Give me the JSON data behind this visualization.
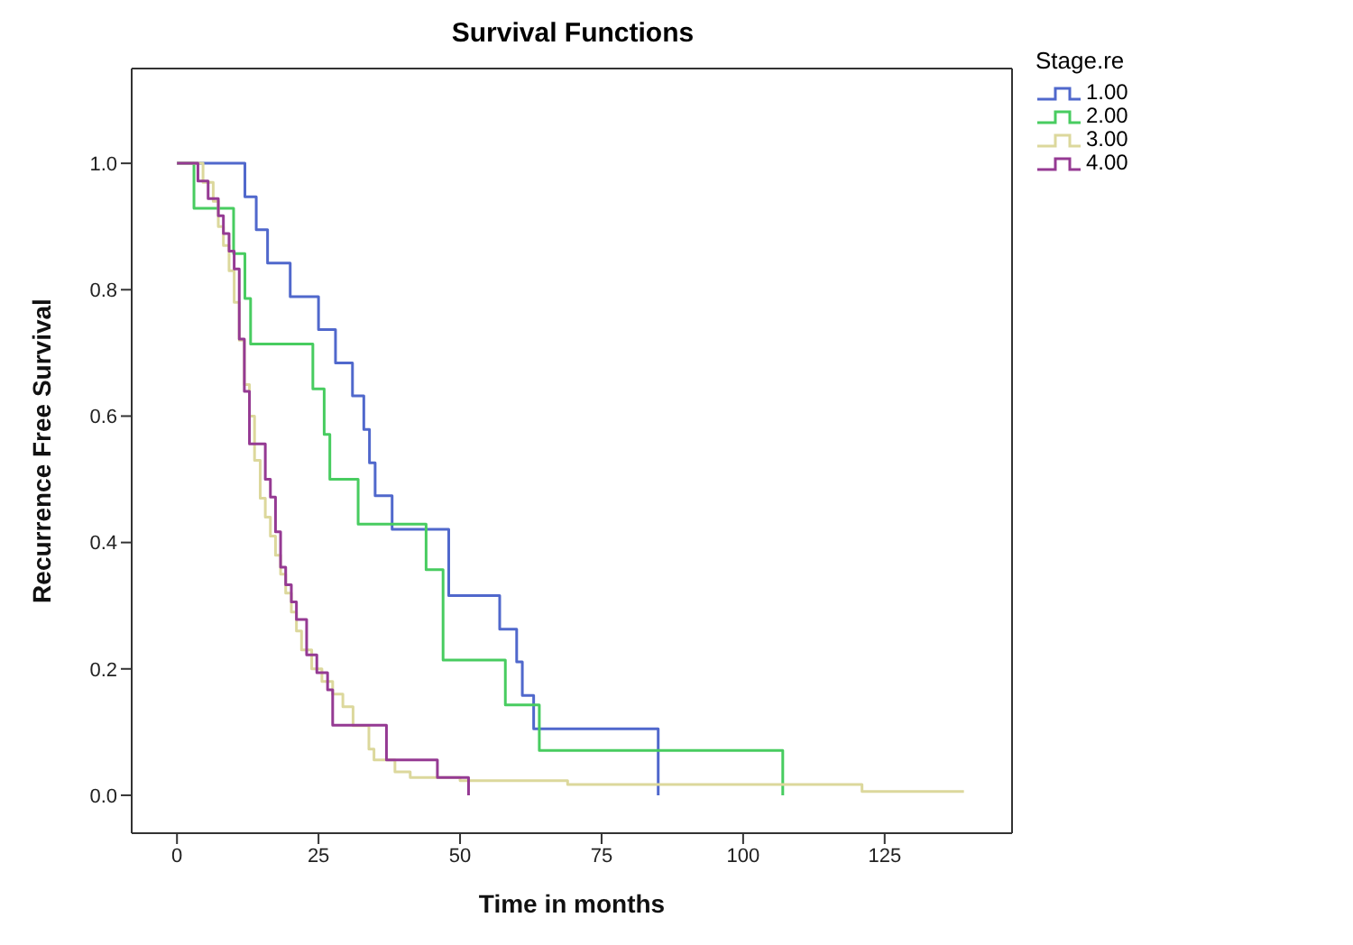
{
  "chart_data": {
    "type": "step",
    "title": "Survival Functions",
    "xlabel": "Time in months",
    "ylabel": "Recurrence Free Survival",
    "legend_title": "Stage.re",
    "legend": "top right",
    "marker": "none",
    "xlim": [
      -8,
      147.5
    ],
    "xticks": [
      0,
      25,
      50,
      75,
      100,
      125
    ],
    "ylim": [
      -0.06,
      1.15
    ],
    "yticks": [
      {
        "value": 0,
        "label": "0.0"
      },
      {
        "value": 0.2,
        "label": "0.2"
      },
      {
        "value": 0.4,
        "label": "0.4"
      },
      {
        "value": 0.6,
        "label": "0.6"
      },
      {
        "value": 0.8,
        "label": "0.8"
      },
      {
        "value": 1,
        "label": "1.0"
      }
    ],
    "series": [
      {
        "name": "1.00",
        "color": "#5068cc",
        "x": [
          0,
          12,
          14,
          16,
          20,
          25,
          28,
          31,
          33,
          34,
          35,
          38,
          48,
          57,
          60,
          61,
          63,
          85
        ],
        "values": [
          1,
          0.947,
          0.895,
          0.842,
          0.789,
          0.737,
          0.684,
          0.632,
          0.579,
          0.526,
          0.474,
          0.421,
          0.316,
          0.263,
          0.211,
          0.158,
          0.105,
          0
        ]
      },
      {
        "name": "2.00",
        "color": "#48cc60",
        "x": [
          0,
          3,
          10,
          12,
          13,
          24,
          26,
          27,
          32,
          44,
          47,
          58,
          64,
          107
        ],
        "values": [
          1,
          0.929,
          0.857,
          0.786,
          0.714,
          0.643,
          0.571,
          0.5,
          0.429,
          0.357,
          0.214,
          0.143,
          0.071,
          0
        ]
      },
      {
        "name": "3.00",
        "color": "#dcd89c",
        "x": [
          0,
          4.6,
          6.4,
          7.3,
          8.2,
          9.2,
          10.1,
          11,
          11.9,
          12.8,
          13.7,
          14.7,
          15.6,
          16.5,
          17.4,
          18.3,
          19.2,
          20.2,
          21.1,
          22,
          23.8,
          25.6,
          27.5,
          29.3,
          31.1,
          33.9,
          34.8,
          38.5,
          41.2,
          50,
          69,
          121,
          139
        ],
        "values": [
          1,
          0.97,
          0.94,
          0.9,
          0.87,
          0.83,
          0.78,
          0.72,
          0.65,
          0.6,
          0.53,
          0.47,
          0.44,
          0.41,
          0.38,
          0.35,
          0.32,
          0.29,
          0.26,
          0.23,
          0.2,
          0.18,
          0.16,
          0.14,
          0.11,
          0.073,
          0.056,
          0.037,
          0.028,
          0.023,
          0.017,
          0.006,
          0.006
        ]
      },
      {
        "name": "4.00",
        "color": "#953a93",
        "x": [
          0,
          3.7,
          5.5,
          7.3,
          8.2,
          9.2,
          10.1,
          11,
          11.9,
          12.8,
          15.6,
          16.5,
          17.4,
          18.3,
          19.2,
          20.2,
          21.1,
          22.9,
          24.7,
          26.6,
          27.5,
          37,
          46,
          51.5
        ],
        "values": [
          1,
          0.972,
          0.944,
          0.917,
          0.889,
          0.861,
          0.833,
          0.722,
          0.639,
          0.556,
          0.5,
          0.472,
          0.417,
          0.361,
          0.333,
          0.306,
          0.278,
          0.222,
          0.194,
          0.167,
          0.111,
          0.056,
          0.028,
          0
        ]
      }
    ]
  }
}
